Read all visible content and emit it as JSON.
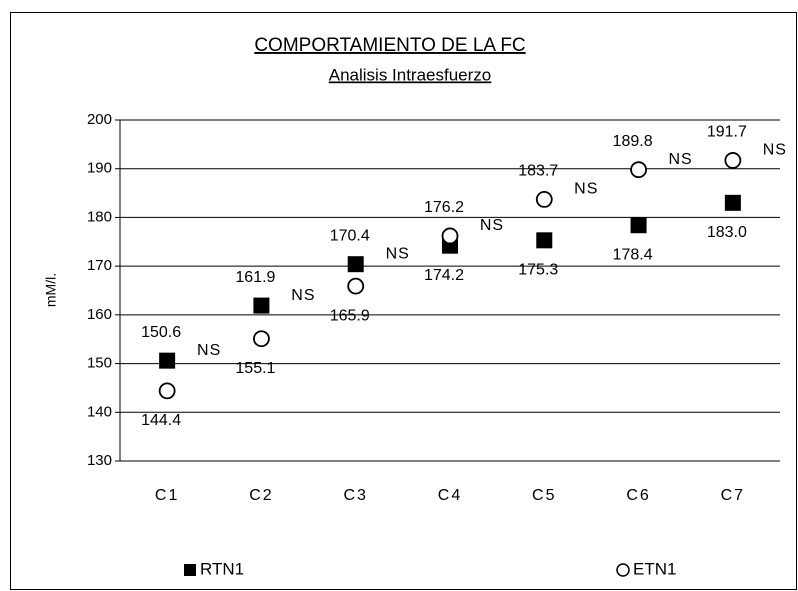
{
  "chart_data": {
    "type": "scatter",
    "title": "COMPORTAMIENTO DE LA FC",
    "subtitle": "Analisis Intraesfuerzo",
    "y_label": "mM/l.",
    "categories": [
      "C1",
      "C2",
      "C3",
      "C4",
      "C5",
      "C6",
      "C7"
    ],
    "series": [
      {
        "name": "RTN1",
        "color": "#000000",
        "marker": "square",
        "values": [
          150.6,
          161.9,
          170.4,
          174.2,
          175.3,
          178.4,
          183.0
        ],
        "value_labels": [
          "150.6",
          "161.9",
          "170.4",
          "174.2",
          "175.3",
          "178.4",
          "183.0"
        ]
      },
      {
        "name": "ETN1",
        "color": "#000000",
        "marker": "circle",
        "values": [
          144.4,
          155.1,
          165.9,
          176.2,
          183.7,
          189.8,
          191.7
        ],
        "value_labels": [
          "144.4",
          "155.1",
          "165.9",
          "176.2",
          "183.7",
          "189.8",
          "191.7"
        ]
      }
    ],
    "annotations": [
      "NS",
      "NS",
      "NS",
      "NS",
      "NS",
      "NS",
      "NS"
    ],
    "ylim": [
      130,
      200
    ],
    "yticks": [
      130,
      140,
      150,
      160,
      170,
      180,
      190,
      200
    ],
    "grid": true,
    "legend": "bottom"
  }
}
